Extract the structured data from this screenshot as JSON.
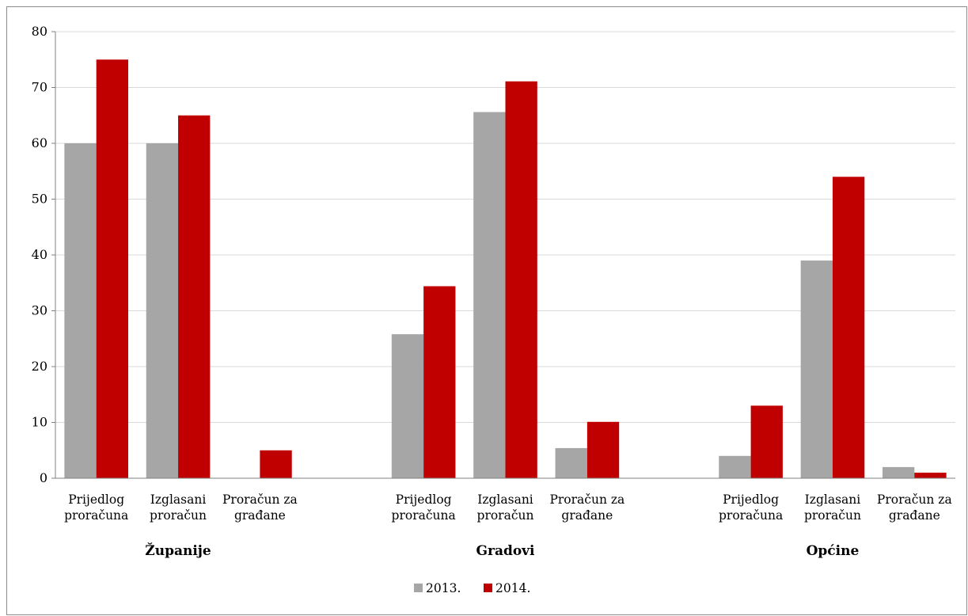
{
  "chart_data": {
    "type": "bar",
    "title": "",
    "xlabel": "",
    "ylabel": "",
    "ylim": [
      0,
      80
    ],
    "yticks": [
      "0",
      "10",
      "20",
      "30",
      "40",
      "50",
      "60",
      "70",
      "80"
    ],
    "grid": true,
    "legend_position": "bottom",
    "groups": [
      {
        "label": "Županije",
        "categories": [
          [
            "Prijedlog",
            "proračuna"
          ],
          [
            "Izglasani",
            "proračun"
          ],
          [
            "Proračun za",
            "građane"
          ]
        ]
      },
      {
        "label": "Gradovi",
        "categories": [
          [
            "Prijedlog",
            "proračuna"
          ],
          [
            "Izglasani",
            "proračun"
          ],
          [
            "Proračun za",
            "građane"
          ]
        ]
      },
      {
        "label": "Općine",
        "categories": [
          [
            "Prijedlog",
            "proračuna"
          ],
          [
            "Izglasani",
            "proračun"
          ],
          [
            "Proračun za",
            "građane"
          ]
        ]
      }
    ],
    "series": [
      {
        "name": "2013.",
        "color": "#a6a6a6",
        "values": [
          60,
          60,
          0,
          25.8,
          65.6,
          5.4,
          4,
          39,
          2
        ]
      },
      {
        "name": "2014.",
        "color": "#c00000",
        "values": [
          75,
          65,
          5,
          34.4,
          71.1,
          10.1,
          13,
          54,
          1
        ]
      }
    ]
  }
}
